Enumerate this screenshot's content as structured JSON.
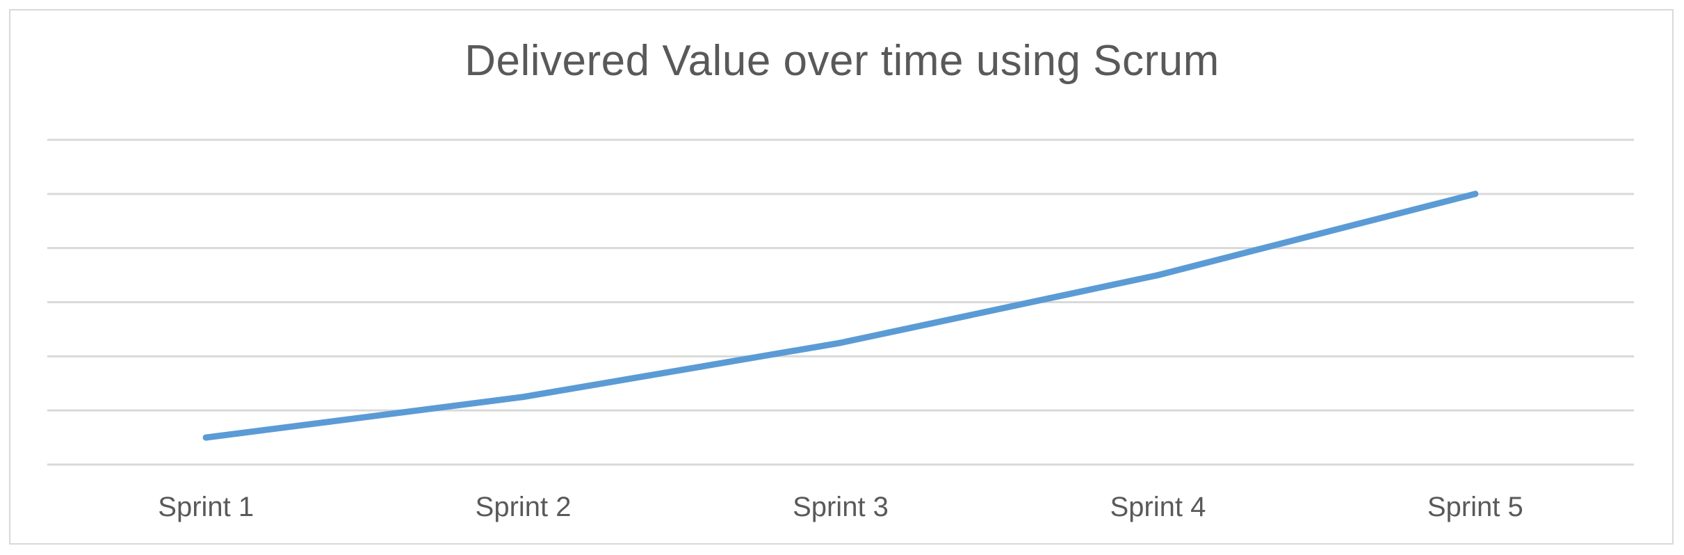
{
  "chart_data": {
    "type": "line",
    "title": "Delivered Value over time using Scrum",
    "xlabel": "",
    "ylabel": "",
    "categories": [
      "Sprint 1",
      "Sprint 2",
      "Sprint 3",
      "Sprint 4",
      "Sprint 5"
    ],
    "series": [
      {
        "values": [
          0.5,
          1.25,
          2.25,
          3.5,
          5.0
        ],
        "color": "#5b9bd5"
      }
    ],
    "ylim": [
      0,
      6
    ],
    "gridlines": true,
    "y_tick_labels_visible": false,
    "legend": "none"
  }
}
